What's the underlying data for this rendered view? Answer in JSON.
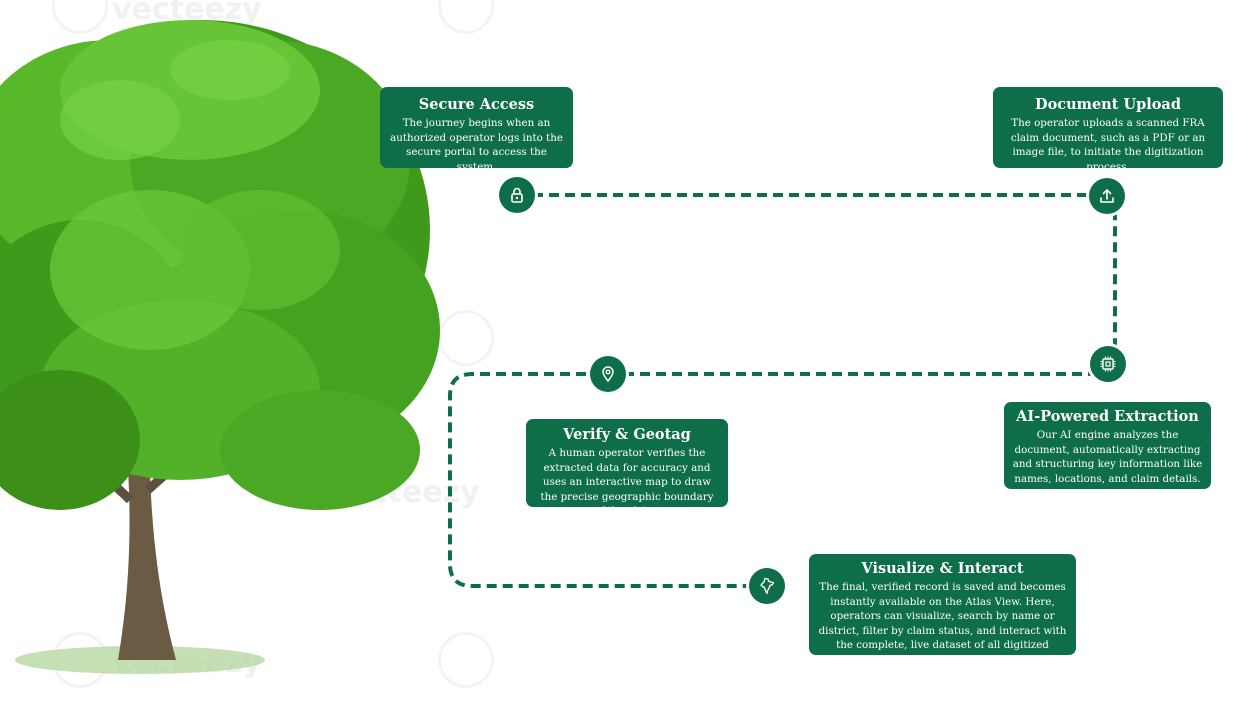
{
  "watermark": "vecteezy",
  "steps": [
    {
      "title": "Secure Access",
      "desc": "The journey begins when an authorized operator logs into the secure portal to access the system.",
      "icon": "lock-icon"
    },
    {
      "title": "Document Upload",
      "desc": "The operator uploads a scanned FRA claim document, such as a PDF or an image file, to initiate the digitization process.",
      "icon": "upload-icon"
    },
    {
      "title": "AI-Powered Extraction",
      "desc": "Our AI engine analyzes the document, automatically extracting and structuring key information like names, locations, and claim details.",
      "icon": "cpu-chip-icon"
    },
    {
      "title": "Verify & Geotag",
      "desc": "A human operator verifies the extracted data for accuracy and uses an interactive map to draw the precise geographic boundary of the claim.",
      "icon": "map-pin-icon"
    },
    {
      "title": "Visualize & Interact",
      "desc": "The final, verified record is saved and becomes instantly available on the Atlas View. Here, operators can visualize, search by name or district, filter by claim status, and interact with the complete, live dataset of all digitized claims.",
      "icon": "india-map-icon"
    }
  ],
  "colors": {
    "accent": "#0f6e4a",
    "path": "#0f6e4a",
    "foliage": "#4fae22",
    "trunk": "#6b5b45"
  }
}
